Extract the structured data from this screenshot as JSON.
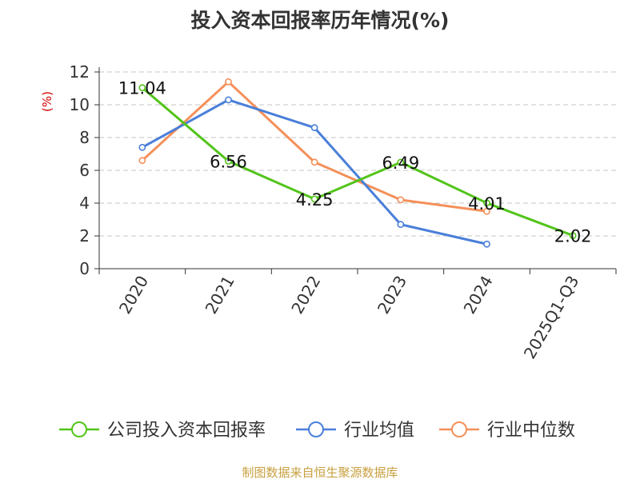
{
  "chart_data": {
    "type": "line",
    "title": "投入资本回报率历年情况(%)",
    "ylabel": "(%)",
    "xlabel": "",
    "categories": [
      "2020",
      "2021",
      "2022",
      "2023",
      "2024",
      "2025Q1-Q3"
    ],
    "ylim": [
      0,
      12
    ],
    "yticks": [
      0,
      2,
      4,
      6,
      8,
      10,
      12
    ],
    "grid": true,
    "legend_position": "bottom",
    "series": [
      {
        "name": "公司投入资本回报率",
        "color": "#52c41a",
        "values": [
          11.04,
          6.56,
          4.25,
          6.49,
          4.01,
          2.02
        ],
        "labels": [
          "11.04",
          "6.56",
          "4.25",
          "6.49",
          "4.01",
          "2.02"
        ]
      },
      {
        "name": "行业均值",
        "color": "#4a7fd9",
        "values": [
          7.4,
          10.3,
          8.6,
          2.7,
          1.5,
          null
        ]
      },
      {
        "name": "行业中位数",
        "color": "#f4905a",
        "values": [
          6.6,
          11.4,
          6.5,
          4.2,
          3.5,
          null
        ]
      }
    ]
  },
  "footer": {
    "source": "制图数据来自恒生聚源数据库"
  }
}
